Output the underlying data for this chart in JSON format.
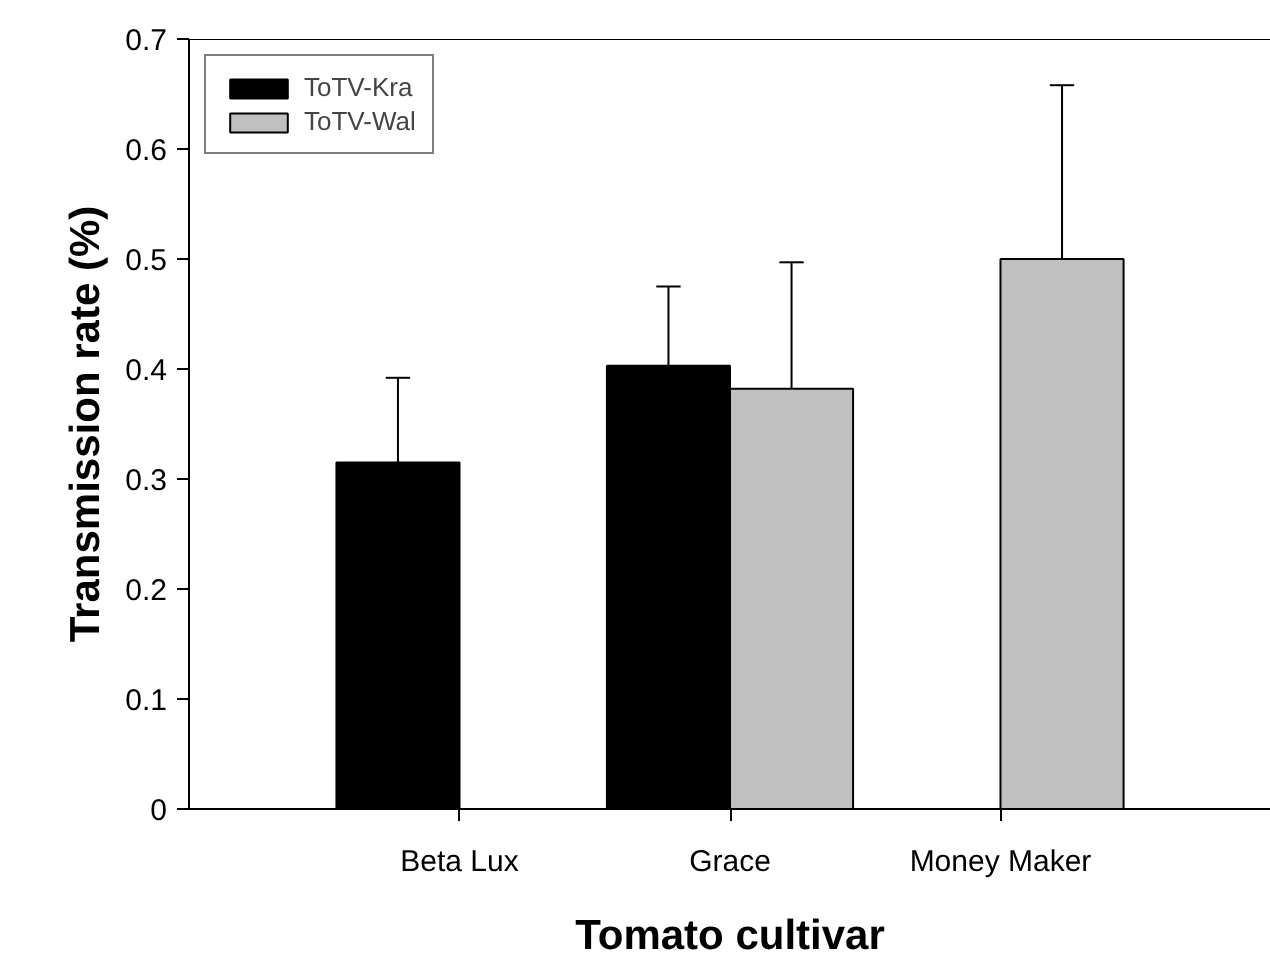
{
  "chart_data": {
    "type": "bar",
    "xlabel": "Tomato cultivar",
    "ylabel": "Transmission rate (%)",
    "categories": [
      "Beta Lux",
      "Grace",
      "Money Maker"
    ],
    "series": [
      {
        "name": "ToTV-Kra",
        "color": "#000000",
        "values": [
          0.315,
          0.403,
          null
        ],
        "errors": [
          [
            0.315,
            0.392
          ],
          [
            0.403,
            0.475
          ],
          null
        ]
      },
      {
        "name": "ToTV-Wal",
        "color": "#c0c0c0",
        "values": [
          null,
          0.382,
          0.5
        ],
        "errors": [
          null,
          [
            0.382,
            0.497
          ],
          [
            0.5,
            0.658
          ]
        ]
      }
    ],
    "ylim": [
      0,
      0.7
    ],
    "yticks": [
      0,
      0.1,
      0.2,
      0.3,
      0.4,
      0.5,
      0.6,
      0.7
    ],
    "grid": false,
    "legend": "top left"
  }
}
